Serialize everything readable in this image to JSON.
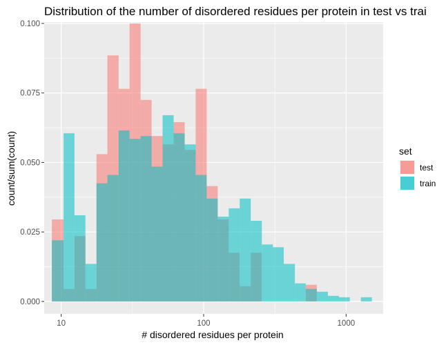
{
  "chart_data": {
    "type": "bar",
    "title": "Distribution of the number of disordered residues per protein in test vs trai",
    "xlabel": "# disordered residues per protein",
    "ylabel": "count/sum(count)",
    "x_scale": "log10",
    "xlim": [
      7.6,
      1820
    ],
    "ylim": [
      -0.0045,
      0.1005
    ],
    "x_ticks": [
      10,
      100,
      1000
    ],
    "x_tick_labels": [
      "10",
      "100",
      "1000"
    ],
    "y_ticks": [
      0,
      0.025,
      0.05,
      0.075,
      0.1
    ],
    "y_tick_labels": [
      "0.000",
      "0.025",
      "0.050",
      "0.075",
      "0.100"
    ],
    "grid": true,
    "legend": {
      "title": "set",
      "position": "right"
    },
    "bins": [
      [
        8.6,
        10.4
      ],
      [
        10.4,
        12.4
      ],
      [
        12.4,
        14.8
      ],
      [
        14.8,
        17.7
      ],
      [
        17.7,
        21.1
      ],
      [
        21.1,
        25.3
      ],
      [
        25.3,
        30.2
      ],
      [
        30.2,
        36.1
      ],
      [
        36.1,
        43.1
      ],
      [
        43.1,
        51.5
      ],
      [
        51.5,
        61.6
      ],
      [
        61.6,
        73.6
      ],
      [
        73.6,
        87.9
      ],
      [
        87.9,
        105
      ],
      [
        105,
        125.5
      ],
      [
        125.5,
        150
      ],
      [
        150,
        179.2
      ],
      [
        179.2,
        214
      ],
      [
        214,
        256
      ],
      [
        256,
        306
      ],
      [
        306,
        365
      ],
      [
        365,
        437
      ],
      [
        437,
        521
      ],
      [
        521,
        623
      ],
      [
        623,
        745
      ],
      [
        745,
        890
      ],
      [
        890,
        1063
      ],
      [
        1063,
        1270
      ],
      [
        1270,
        1517
      ]
    ],
    "series": [
      {
        "name": "test",
        "color": "#F8766D",
        "values": [
          0.0295,
          0.0045,
          0.0235,
          0.0045,
          0.053,
          0.0885,
          0.0765,
          0.1,
          0.0725,
          0.0595,
          0.0565,
          0.0645,
          0.0545,
          0.0765,
          0.0415,
          0.0295,
          0.0175,
          0.0055,
          0.0175,
          0.0,
          0.0,
          0.0,
          0.0,
          0.006,
          0.0,
          0.0,
          0.0,
          0.0,
          0.0
        ]
      },
      {
        "name": "train",
        "color": "#00BFC4",
        "values": [
          0.022,
          0.0605,
          0.031,
          0.0135,
          0.0425,
          0.0455,
          0.0615,
          0.0585,
          0.0595,
          0.0485,
          0.067,
          0.0605,
          0.0565,
          0.0455,
          0.037,
          0.0305,
          0.0335,
          0.037,
          0.029,
          0.0205,
          0.0195,
          0.0135,
          0.0065,
          0.0045,
          0.0035,
          0.002,
          0.0015,
          0.0,
          0.0015
        ]
      }
    ]
  }
}
